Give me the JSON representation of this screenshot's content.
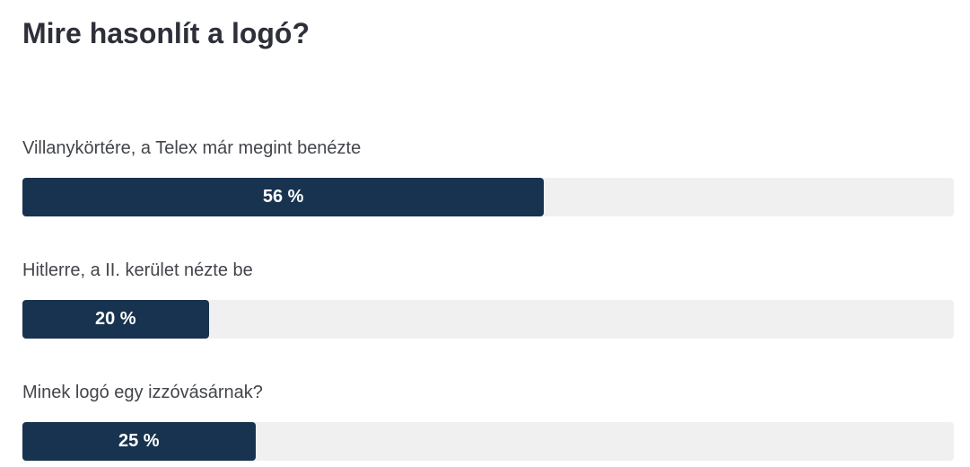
{
  "poll": {
    "title": "Mire hasonlít a logó?",
    "options": [
      {
        "label": "Villanykörtére, a Telex már megint benézte",
        "percent": 56,
        "value_label": "56 %"
      },
      {
        "label": "Hitlerre, a II. kerület nézte be",
        "percent": 20,
        "value_label": "20 %"
      },
      {
        "label": "Minek logó egy izzóvásárnak?",
        "percent": 25,
        "value_label": "25 %"
      }
    ]
  },
  "colors": {
    "bar_fill": "#17334f",
    "bar_track": "#f0f0f1",
    "title_text": "#2d3038",
    "label_text": "#42454a",
    "value_text": "#ffffff",
    "background": "#ffffff"
  },
  "chart_data": {
    "type": "bar",
    "orientation": "horizontal",
    "title": "Mire hasonlít a logó?",
    "categories": [
      "Villanykörtére, a Telex már megint benézte",
      "Hitlerre, a II. kerület nézte be",
      "Minek logó egy izzóvásárnak?"
    ],
    "values": [
      56,
      20,
      25
    ],
    "value_labels": [
      "56 %",
      "20 %",
      "25 %"
    ],
    "unit": "%",
    "xlim": [
      0,
      100
    ],
    "grid": false,
    "legend": false
  }
}
